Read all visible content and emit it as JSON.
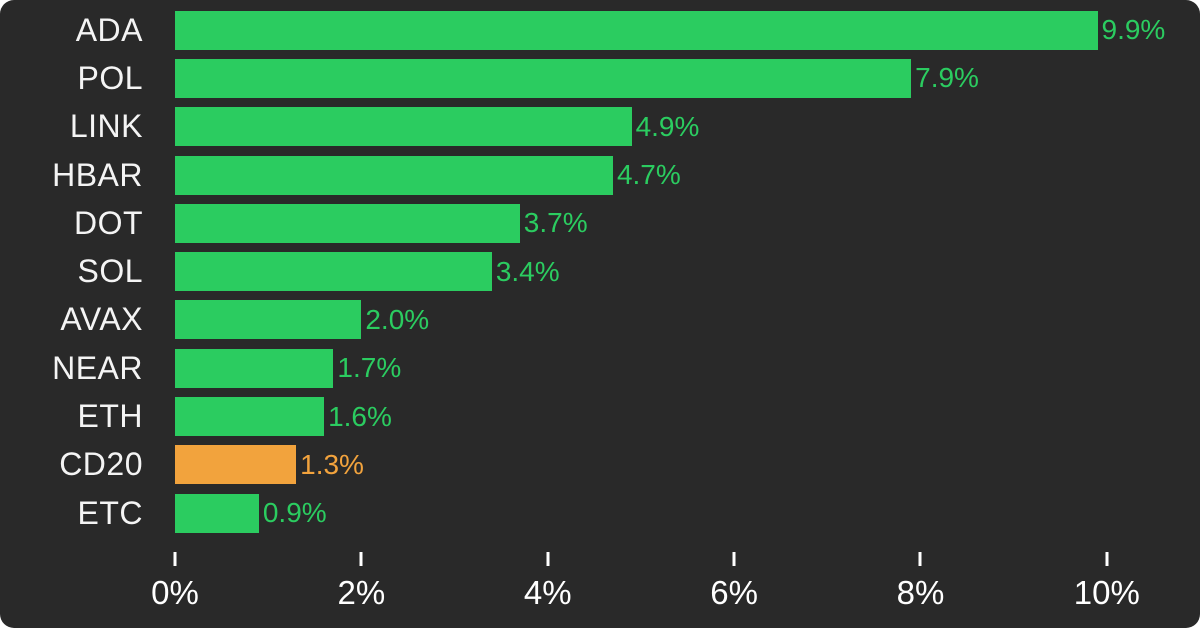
{
  "colors": {
    "background": "#292929",
    "page": "#ffffff",
    "bar_green": "#2bcc60",
    "bar_orange": "#f2a33d",
    "category_text": "#f4f4f4",
    "axis_text": "#ffffff"
  },
  "chart_data": {
    "type": "bar",
    "orientation": "horizontal",
    "title": "",
    "xlabel": "",
    "ylabel": "",
    "categories": [
      "ADA",
      "POL",
      "LINK",
      "HBAR",
      "DOT",
      "SOL",
      "AVAX",
      "NEAR",
      "ETH",
      "CD20",
      "ETC"
    ],
    "values": [
      9.9,
      7.9,
      4.9,
      4.7,
      3.7,
      3.4,
      2.0,
      1.7,
      1.6,
      1.3,
      0.9
    ],
    "value_labels": [
      "9.9%",
      "7.9%",
      "4.9%",
      "4.7%",
      "3.7%",
      "3.4%",
      "2.0%",
      "1.7%",
      "1.6%",
      "1.3%",
      "0.9%"
    ],
    "highlight_category": "CD20",
    "xlim": [
      0,
      11
    ],
    "x_ticks": [
      0,
      2,
      4,
      6,
      8,
      10
    ],
    "x_tick_labels": [
      "0%",
      "2%",
      "4%",
      "6%",
      "8%",
      "10%"
    ],
    "grid": false,
    "legend": false
  }
}
